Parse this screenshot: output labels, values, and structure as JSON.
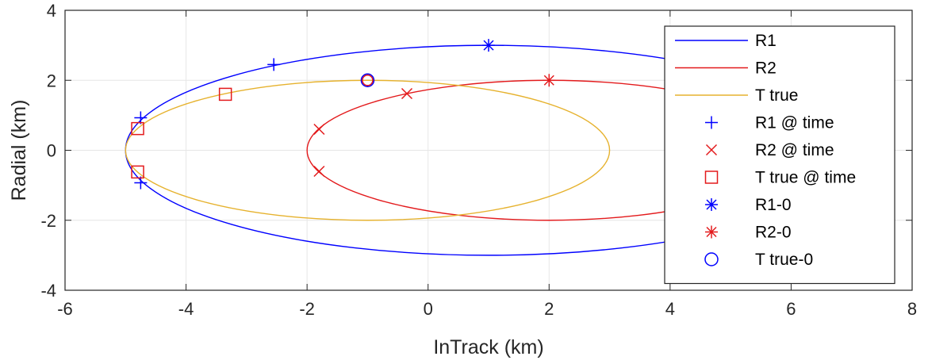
{
  "chart_data": {
    "type": "line",
    "xlabel": "InTrack (km)",
    "ylabel": "Radial (km)",
    "xlim": [
      -6,
      8
    ],
    "ylim": [
      -4,
      4
    ],
    "xticks": [
      -6,
      -4,
      -2,
      0,
      2,
      4,
      6,
      8
    ],
    "yticks": [
      -4,
      -2,
      0,
      2,
      4
    ],
    "grid": true,
    "legend_position": "top-right",
    "colors": {
      "blue": "#0000ff",
      "red": "#e31a1c",
      "yellow": "#e6b22e"
    },
    "series": [
      {
        "name": "R1",
        "kind": "ellipse",
        "center": [
          1,
          0
        ],
        "semi_axis_x": 6,
        "semi_axis_y": 3,
        "color": "#0000ff"
      },
      {
        "name": "R2",
        "kind": "ellipse",
        "center": [
          2,
          0
        ],
        "semi_axis_x": 4,
        "semi_axis_y": 2,
        "color": "#e31a1c"
      },
      {
        "name": "T true",
        "kind": "ellipse",
        "center": [
          -1,
          0
        ],
        "semi_axis_x": 4,
        "semi_axis_y": 2,
        "color": "#e6b22e"
      }
    ],
    "markers": [
      {
        "name": "R1 @ time",
        "symbol": "plus",
        "color": "#0000ff",
        "points": [
          [
            -2.55,
            2.45
          ],
          [
            -4.75,
            0.93
          ],
          [
            -4.75,
            -0.93
          ]
        ]
      },
      {
        "name": "R2 @ time",
        "symbol": "x",
        "color": "#e31a1c",
        "points": [
          [
            -0.35,
            1.62
          ],
          [
            -1.8,
            0.6
          ],
          [
            -1.8,
            -0.6
          ]
        ]
      },
      {
        "name": "T true @ time",
        "symbol": "square",
        "color": "#e31a1c",
        "points": [
          [
            -3.35,
            1.6
          ],
          [
            -4.8,
            0.62
          ],
          [
            -4.8,
            -0.62
          ]
        ]
      },
      {
        "name": "R1-0",
        "symbol": "asterisk",
        "color": "#0000ff",
        "points": [
          [
            1,
            3
          ]
        ]
      },
      {
        "name": "R2-0",
        "symbol": "asterisk",
        "color": "#e31a1c",
        "points": [
          [
            2,
            2
          ]
        ]
      },
      {
        "name": "T true-0",
        "symbol": "circle",
        "color": "#0000ff",
        "points": [
          [
            -1,
            2
          ]
        ]
      }
    ],
    "overlay_markers": [
      {
        "symbol": "circle",
        "color": "#e31a1c",
        "points": [
          [
            -1,
            2
          ]
        ]
      }
    ],
    "legend": [
      {
        "label": "R1",
        "kind": "line",
        "color": "#0000ff"
      },
      {
        "label": "R2",
        "kind": "line",
        "color": "#e31a1c"
      },
      {
        "label": "T true",
        "kind": "line",
        "color": "#e6b22e"
      },
      {
        "label": "R1 @ time",
        "kind": "plus",
        "color": "#0000ff"
      },
      {
        "label": "R2 @ time",
        "kind": "x",
        "color": "#e31a1c"
      },
      {
        "label": "T true @ time",
        "kind": "square",
        "color": "#e31a1c"
      },
      {
        "label": "R1-0",
        "kind": "asterisk",
        "color": "#0000ff"
      },
      {
        "label": "R2-0",
        "kind": "asterisk",
        "color": "#e31a1c"
      },
      {
        "label": "T true-0",
        "kind": "circle",
        "color": "#0000ff"
      }
    ]
  }
}
